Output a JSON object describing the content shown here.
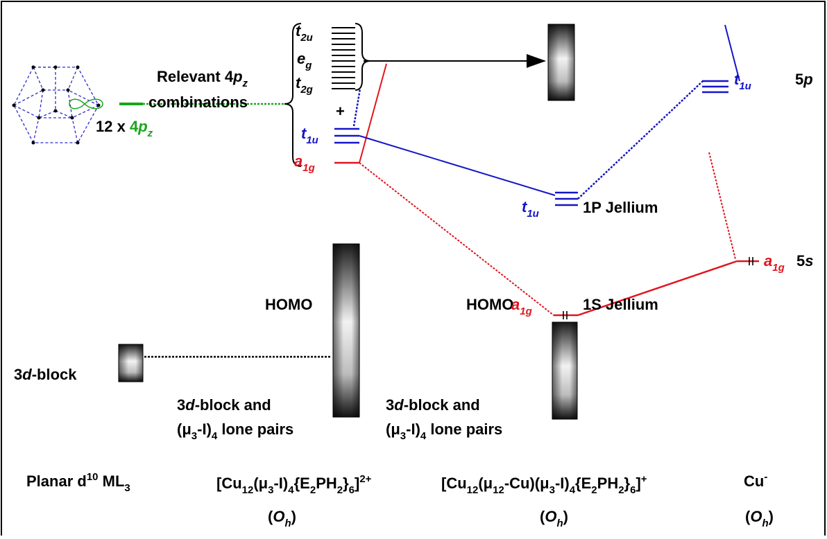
{
  "orbital_source": {
    "count": "12 x ",
    "orbital": [
      "4",
      "p",
      "z"
    ]
  },
  "relevant": {
    "line1": [
      "Relevant 4",
      "p",
      "z"
    ],
    "line2": "combinations"
  },
  "left_levels": {
    "t2u": [
      "t",
      "2u"
    ],
    "eg": [
      "e",
      "g"
    ],
    "t2g": [
      "t",
      "2g"
    ],
    "plus": "+",
    "t1u": [
      "t",
      "1u"
    ],
    "a1g": [
      "a",
      "1g"
    ]
  },
  "middle_levels": {
    "t1u": [
      "t",
      "1u"
    ],
    "t1u_name": "1P Jellium",
    "homo": "HOMO",
    "a1g": [
      "a",
      "1g"
    ],
    "a1g_name": "1S Jellium"
  },
  "right_levels": {
    "t1u": [
      "t",
      "1u"
    ],
    "t1u_name": [
      "5",
      "p"
    ],
    "a1g": [
      "a",
      "1g"
    ],
    "a1g_name": [
      "5",
      "s"
    ]
  },
  "blocks": {
    "d_block": [
      "3",
      "d",
      "-block"
    ],
    "homo_left": "HOMO",
    "cluster1": {
      "line1": [
        "3",
        "d",
        "-block and"
      ],
      "line2": [
        "(μ",
        "3",
        "-I)",
        "4",
        " lone pairs"
      ]
    },
    "cluster2": {
      "line1": [
        "3",
        "d",
        "-block and"
      ],
      "line2": [
        "(μ",
        "3",
        "-I)",
        "4",
        " lone pairs"
      ]
    }
  },
  "compounds": [
    {
      "formula": [
        "Planar d",
        "10",
        " ML",
        "3"
      ]
    },
    {
      "formula": [
        "[Cu",
        "12",
        "(μ",
        "3",
        "-I)",
        "4",
        "{E",
        "2",
        "PH",
        "2",
        "}",
        "6",
        "]",
        "2+"
      ],
      "symmetry": [
        "(",
        "O",
        "h",
        ")"
      ]
    },
    {
      "formula": [
        "[Cu",
        "12",
        "(μ",
        "12",
        "-Cu)(μ",
        "3",
        "-I)",
        "4",
        "{E",
        "2",
        "PH",
        "2",
        "}",
        "6",
        "]",
        "+"
      ],
      "symmetry": [
        "(",
        "O",
        "h",
        ")"
      ]
    },
    {
      "formula": [
        "Cu",
        "-"
      ],
      "symmetry": [
        "(",
        "O",
        "h",
        ")"
      ]
    }
  ]
}
